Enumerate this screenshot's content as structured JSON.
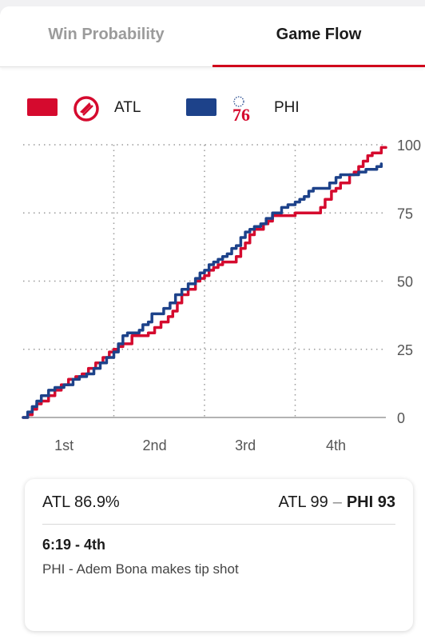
{
  "tabs": [
    {
      "label": "Win Probability",
      "active": false
    },
    {
      "label": "Game Flow",
      "active": true
    }
  ],
  "legend": {
    "home": {
      "abbr": "ATL",
      "color": "#d50a2e",
      "logo": "hawks-logo-icon"
    },
    "away": {
      "abbr": "PHI",
      "color": "#1d428a",
      "logo": "76ers-logo-icon",
      "logo_text": "76"
    }
  },
  "chart_data": {
    "type": "line",
    "title": "",
    "xlabel": "",
    "ylabel": "",
    "x_ticks": [
      "1st",
      "2nd",
      "3rd",
      "4th"
    ],
    "xlim": [
      0,
      4
    ],
    "ylim": [
      0,
      100
    ],
    "y_ticks": [
      0,
      25,
      50,
      75,
      100
    ],
    "grid": true,
    "series": [
      {
        "name": "ATL",
        "color": "#d50a2e",
        "points": [
          [
            0,
            0
          ],
          [
            0.05,
            1
          ],
          [
            0.1,
            3
          ],
          [
            0.15,
            5
          ],
          [
            0.2,
            6
          ],
          [
            0.28,
            8
          ],
          [
            0.35,
            10
          ],
          [
            0.42,
            12
          ],
          [
            0.5,
            14
          ],
          [
            0.58,
            15
          ],
          [
            0.65,
            16
          ],
          [
            0.72,
            18
          ],
          [
            0.8,
            20
          ],
          [
            0.88,
            22
          ],
          [
            0.95,
            24
          ],
          [
            1.0,
            25
          ],
          [
            1.05,
            26
          ],
          [
            1.1,
            27
          ],
          [
            1.2,
            30
          ],
          [
            1.3,
            30
          ],
          [
            1.38,
            31
          ],
          [
            1.45,
            33
          ],
          [
            1.52,
            35
          ],
          [
            1.6,
            37
          ],
          [
            1.65,
            39
          ],
          [
            1.7,
            42
          ],
          [
            1.75,
            45
          ],
          [
            1.82,
            47
          ],
          [
            1.9,
            50
          ],
          [
            1.95,
            51
          ],
          [
            2.0,
            52
          ],
          [
            2.05,
            54
          ],
          [
            2.1,
            55
          ],
          [
            2.15,
            56
          ],
          [
            2.2,
            57
          ],
          [
            2.3,
            57
          ],
          [
            2.35,
            59
          ],
          [
            2.4,
            62
          ],
          [
            2.45,
            64
          ],
          [
            2.5,
            67
          ],
          [
            2.55,
            69
          ],
          [
            2.65,
            71
          ],
          [
            2.7,
            72
          ],
          [
            2.75,
            74
          ],
          [
            2.85,
            74
          ],
          [
            3.0,
            75
          ],
          [
            3.1,
            75
          ],
          [
            3.2,
            75
          ],
          [
            3.28,
            77
          ],
          [
            3.33,
            80
          ],
          [
            3.4,
            83
          ],
          [
            3.45,
            84
          ],
          [
            3.5,
            86
          ],
          [
            3.6,
            89
          ],
          [
            3.65,
            90
          ],
          [
            3.7,
            92
          ],
          [
            3.75,
            94
          ],
          [
            3.8,
            96
          ],
          [
            3.85,
            97
          ],
          [
            3.9,
            97
          ],
          [
            3.95,
            99
          ],
          [
            4.0,
            99
          ]
        ]
      },
      {
        "name": "PHI",
        "color": "#1d428a",
        "points": [
          [
            0,
            0
          ],
          [
            0.05,
            2
          ],
          [
            0.1,
            4
          ],
          [
            0.15,
            6
          ],
          [
            0.2,
            8
          ],
          [
            0.28,
            10
          ],
          [
            0.35,
            11
          ],
          [
            0.45,
            12
          ],
          [
            0.55,
            14
          ],
          [
            0.62,
            15
          ],
          [
            0.7,
            16
          ],
          [
            0.78,
            18
          ],
          [
            0.85,
            20
          ],
          [
            0.92,
            22
          ],
          [
            1.0,
            24
          ],
          [
            1.05,
            27
          ],
          [
            1.1,
            30
          ],
          [
            1.15,
            31
          ],
          [
            1.2,
            31
          ],
          [
            1.28,
            32
          ],
          [
            1.32,
            34
          ],
          [
            1.38,
            35
          ],
          [
            1.42,
            38
          ],
          [
            1.5,
            38
          ],
          [
            1.55,
            40
          ],
          [
            1.62,
            42
          ],
          [
            1.68,
            45
          ],
          [
            1.75,
            47
          ],
          [
            1.82,
            49
          ],
          [
            1.9,
            51
          ],
          [
            1.95,
            53
          ],
          [
            2.0,
            54
          ],
          [
            2.05,
            56
          ],
          [
            2.1,
            57
          ],
          [
            2.15,
            58
          ],
          [
            2.2,
            59
          ],
          [
            2.25,
            60
          ],
          [
            2.3,
            62
          ],
          [
            2.35,
            63
          ],
          [
            2.4,
            66
          ],
          [
            2.45,
            68
          ],
          [
            2.5,
            69
          ],
          [
            2.55,
            70
          ],
          [
            2.62,
            71
          ],
          [
            2.68,
            73
          ],
          [
            2.75,
            75
          ],
          [
            2.8,
            75
          ],
          [
            2.85,
            77
          ],
          [
            2.92,
            78
          ],
          [
            3.0,
            79
          ],
          [
            3.05,
            80
          ],
          [
            3.1,
            81
          ],
          [
            3.15,
            83
          ],
          [
            3.2,
            84
          ],
          [
            3.3,
            84
          ],
          [
            3.38,
            86
          ],
          [
            3.45,
            88
          ],
          [
            3.5,
            89
          ],
          [
            3.6,
            89
          ],
          [
            3.7,
            90
          ],
          [
            3.78,
            91
          ],
          [
            3.85,
            91
          ],
          [
            3.9,
            92
          ],
          [
            3.95,
            93
          ]
        ]
      }
    ]
  },
  "info": {
    "probability": "ATL 86.9%",
    "home_score_text": "ATL 99",
    "dash": "–",
    "away_score_text": "PHI 93",
    "time": "6:19 - 4th",
    "description": "PHI - Adem Bona makes tip shot"
  }
}
